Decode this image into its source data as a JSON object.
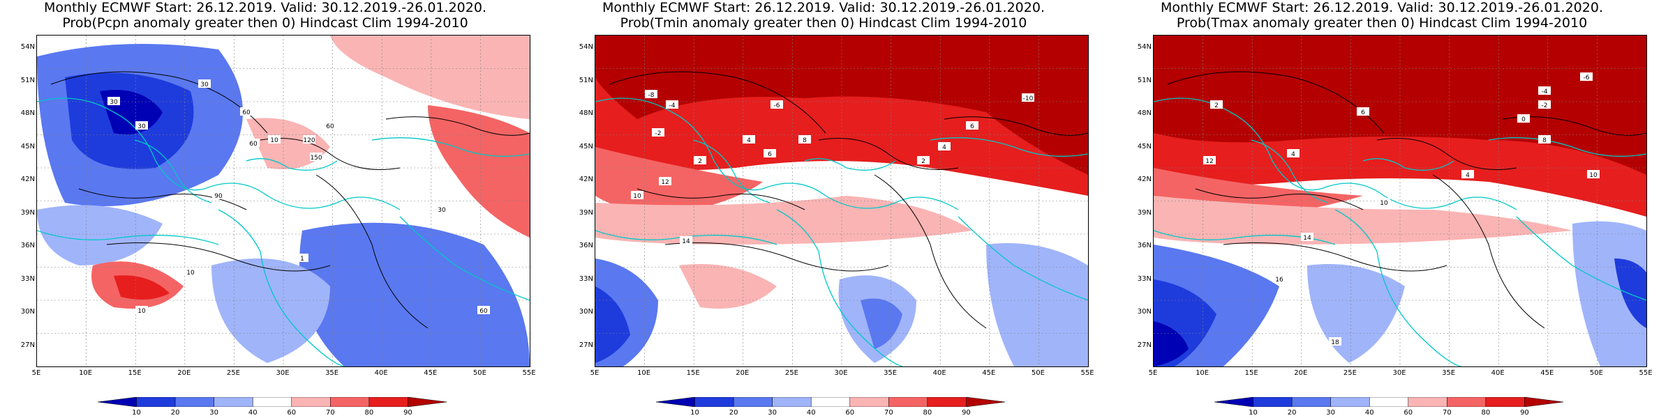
{
  "panels": [
    {
      "title_line1": "Monthly ECMWF Start: 26.12.2019. Valid: 30.12.2019.-26.01.2020.",
      "title_line2": "Prob(Pcpn anomaly greater then 0) Hindcast Clim 1994-2010",
      "contour_labels": [
        "30",
        "30",
        "30",
        "60",
        "60",
        "60",
        "90",
        "120",
        "150",
        "10",
        "10",
        "10",
        "1",
        "30",
        "60"
      ]
    },
    {
      "title_line1": "Monthly ECMWF Start: 26.12.2019. Valid: 30.12.2019.-26.01.2020.",
      "title_line2": "Prob(Tmin anomaly greater then 0) Hindcast Clim 1994-2010",
      "contour_labels": [
        "-8",
        "-4",
        "-2",
        "2",
        "4",
        "6",
        "8",
        "10",
        "12",
        "14",
        "-10",
        "-6",
        "2",
        "4",
        "6"
      ]
    },
    {
      "title_line1": "Monthly ECMWF Start: 26.12.2019. Valid: 30.12.2019.-26.01.2020.",
      "title_line2": "Prob(Tmax anomaly greater then 0) Hindcast Clim 1994-2010",
      "contour_labels": [
        "-6",
        "-4",
        "-2",
        "2",
        "4",
        "6",
        "8",
        "10",
        "12",
        "14",
        "16",
        "18",
        "0",
        "4",
        "10"
      ]
    }
  ],
  "axes": {
    "y_ticks": [
      "54N",
      "51N",
      "48N",
      "45N",
      "42N",
      "39N",
      "36N",
      "33N",
      "30N",
      "27N"
    ],
    "x_ticks": [
      "5E",
      "10E",
      "15E",
      "20E",
      "25E",
      "30E",
      "35E",
      "40E",
      "45E",
      "50E",
      "55E"
    ]
  },
  "colorbar": {
    "labels": [
      "10",
      "20",
      "30",
      "40",
      "60",
      "70",
      "80",
      "90"
    ],
    "colors": [
      "#0000b4",
      "#1e3cdc",
      "#5a78f0",
      "#a0b4fa",
      "#ffffff",
      "#fab4b4",
      "#f56464",
      "#e61e1e",
      "#b40000"
    ]
  }
}
